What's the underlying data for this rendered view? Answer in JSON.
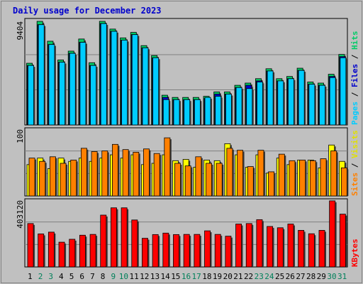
{
  "chart_data": [
    {
      "type": "bar",
      "title": "Daily usage for December 2023",
      "categories": [
        "1",
        "2",
        "3",
        "4",
        "5",
        "6",
        "7",
        "8",
        "9",
        "10",
        "11",
        "12",
        "13",
        "14",
        "15",
        "16",
        "17",
        "18",
        "19",
        "20",
        "21",
        "22",
        "23",
        "24",
        "25",
        "26",
        "27",
        "28",
        "29",
        "30",
        "31"
      ],
      "weekend_days": [
        "2",
        "3",
        "9",
        "10",
        "16",
        "17",
        "23",
        "24",
        "30",
        "31"
      ],
      "ylabel_tick": "9404",
      "ylim": [
        0,
        9404
      ],
      "legend": [
        "Pages",
        "Files",
        "Hits"
      ],
      "legend_colors": {
        "Pages": "#00ccff",
        "Files": "#0000cc",
        "Hits": "#00cc66"
      },
      "series": [
        {
          "name": "Hits",
          "values": [
            5600,
            9404,
            7600,
            5900,
            6700,
            7800,
            5650,
            9404,
            8700,
            7900,
            8400,
            7200,
            6300,
            2700,
            2500,
            2500,
            2500,
            2600,
            3000,
            3000,
            3600,
            3800,
            4200,
            5100,
            4200,
            4400,
            5150,
            3900,
            3800,
            4600,
            6400
          ]
        },
        {
          "name": "Files",
          "values": [
            5400,
            9100,
            7300,
            5700,
            6500,
            7500,
            5400,
            9200,
            8500,
            7700,
            8200,
            7000,
            6100,
            2500,
            2300,
            2300,
            2300,
            2400,
            2800,
            2800,
            3400,
            3600,
            4000,
            4900,
            4000,
            4200,
            4950,
            3700,
            3600,
            4400,
            6200
          ]
        },
        {
          "name": "Pages",
          "values": [
            5400,
            9100,
            7300,
            5700,
            6500,
            7500,
            5400,
            9200,
            8500,
            7700,
            8200,
            7000,
            6100,
            2300,
            2300,
            2300,
            2300,
            2500,
            2600,
            2800,
            3400,
            3300,
            3900,
            4900,
            4000,
            4200,
            4950,
            3700,
            3600,
            4300,
            6100
          ]
        }
      ]
    },
    {
      "type": "bar",
      "categories": [
        "1",
        "2",
        "3",
        "4",
        "5",
        "6",
        "7",
        "8",
        "9",
        "10",
        "11",
        "12",
        "13",
        "14",
        "15",
        "16",
        "17",
        "18",
        "19",
        "20",
        "21",
        "22",
        "23",
        "24",
        "25",
        "26",
        "27",
        "28",
        "29",
        "30",
        "31"
      ],
      "ylabel_tick": "100",
      "ylim": [
        0,
        100
      ],
      "legend": [
        "Sites",
        "Visits"
      ],
      "legend_colors": {
        "Sites": "#ff8000",
        "Visits": "#ffff00"
      },
      "series": [
        {
          "name": "Visits",
          "values": [
            48,
            58,
            42,
            58,
            53,
            58,
            53,
            58,
            63,
            58,
            63,
            48,
            50,
            63,
            54,
            56,
            44,
            55,
            54,
            80,
            63,
            44,
            63,
            35,
            58,
            48,
            55,
            55,
            43,
            78,
            53
          ]
        },
        {
          "name": "Sites",
          "values": [
            58,
            53,
            60,
            50,
            55,
            73,
            68,
            69,
            79,
            71,
            67,
            72,
            65,
            89,
            50,
            46,
            60,
            50,
            50,
            73,
            70,
            45,
            70,
            37,
            64,
            54,
            55,
            54,
            57,
            69,
            43
          ]
        }
      ]
    },
    {
      "type": "bar",
      "categories": [
        "1",
        "2",
        "3",
        "4",
        "5",
        "6",
        "7",
        "8",
        "9",
        "10",
        "11",
        "12",
        "13",
        "14",
        "15",
        "16",
        "17",
        "18",
        "19",
        "20",
        "21",
        "22",
        "23",
        "24",
        "25",
        "26",
        "27",
        "28",
        "29",
        "30",
        "31"
      ],
      "ylabel_tick": "403120",
      "ylim": [
        0,
        403120
      ],
      "legend": [
        "KBytes"
      ],
      "legend_colors": {
        "KBytes": "#ff0000"
      },
      "series": [
        {
          "name": "KBytes",
          "values": [
            268000,
            204000,
            215000,
            153000,
            171000,
            196000,
            201000,
            320000,
            365000,
            365000,
            290000,
            177000,
            200000,
            209000,
            200000,
            201000,
            201000,
            223000,
            201000,
            190000,
            265000,
            268000,
            292000,
            250000,
            242000,
            265000,
            226000,
            205000,
            226000,
            408000,
            326000
          ]
        }
      ]
    }
  ]
}
